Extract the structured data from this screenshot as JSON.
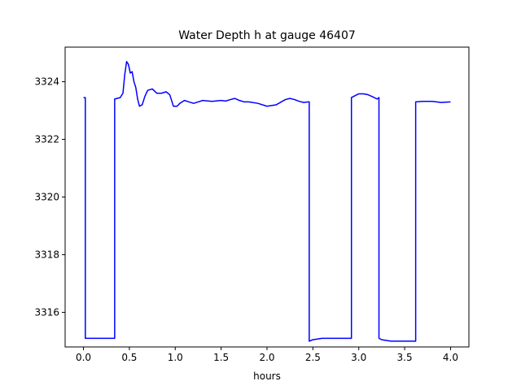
{
  "chart_data": {
    "type": "line",
    "title": "Water Depth h at gauge 46407",
    "xlabel": "hours",
    "ylabel": "",
    "xlim": [
      -0.2,
      4.2
    ],
    "ylim": [
      3314.8,
      3325.2
    ],
    "xticks": [
      0.0,
      0.5,
      1.0,
      1.5,
      2.0,
      2.5,
      3.0,
      3.5,
      4.0
    ],
    "xtick_labels": [
      "0.0",
      "0.5",
      "1.0",
      "1.5",
      "2.0",
      "2.5",
      "3.0",
      "3.5",
      "4.0"
    ],
    "yticks": [
      3316,
      3318,
      3320,
      3322,
      3324
    ],
    "ytick_labels": [
      "3316",
      "3318",
      "3320",
      "3322",
      "3324"
    ],
    "grid": false,
    "legend": false,
    "series": [
      {
        "color": "#0000ff",
        "x": [
          0.0,
          0.02,
          0.02,
          0.1,
          0.2,
          0.3,
          0.34,
          0.34,
          0.4,
          0.43,
          0.45,
          0.47,
          0.49,
          0.51,
          0.53,
          0.55,
          0.57,
          0.59,
          0.61,
          0.64,
          0.67,
          0.7,
          0.75,
          0.8,
          0.85,
          0.9,
          0.94,
          0.98,
          1.02,
          1.05,
          1.1,
          1.15,
          1.2,
          1.25,
          1.3,
          1.4,
          1.5,
          1.55,
          1.6,
          1.65,
          1.7,
          1.75,
          1.8,
          1.9,
          2.0,
          2.1,
          2.2,
          2.25,
          2.3,
          2.35,
          2.4,
          2.45,
          2.46,
          2.46,
          2.5,
          2.6,
          2.7,
          2.8,
          2.9,
          2.92,
          2.92,
          2.95,
          3.0,
          3.05,
          3.1,
          3.15,
          3.2,
          3.22,
          3.22,
          3.25,
          3.35,
          3.45,
          3.55,
          3.62,
          3.62,
          3.7,
          3.8,
          3.9,
          4.0
        ],
        "y": [
          3323.45,
          3323.45,
          3315.1,
          3315.1,
          3315.1,
          3315.1,
          3315.1,
          3323.4,
          3323.45,
          3323.6,
          3324.25,
          3324.7,
          3324.6,
          3324.3,
          3324.35,
          3324.0,
          3323.8,
          3323.4,
          3323.15,
          3323.2,
          3323.5,
          3323.7,
          3323.75,
          3323.6,
          3323.6,
          3323.65,
          3323.55,
          3323.15,
          3323.15,
          3323.25,
          3323.35,
          3323.3,
          3323.25,
          3323.3,
          3323.35,
          3323.32,
          3323.35,
          3323.33,
          3323.38,
          3323.42,
          3323.35,
          3323.3,
          3323.3,
          3323.25,
          3323.15,
          3323.2,
          3323.38,
          3323.42,
          3323.38,
          3323.32,
          3323.28,
          3323.3,
          3323.3,
          3315.0,
          3315.05,
          3315.1,
          3315.1,
          3315.1,
          3315.1,
          3315.1,
          3323.45,
          3323.5,
          3323.58,
          3323.58,
          3323.55,
          3323.48,
          3323.4,
          3323.45,
          3315.1,
          3315.05,
          3315.0,
          3315.0,
          3315.0,
          3315.0,
          3323.3,
          3323.32,
          3323.32,
          3323.28,
          3323.3
        ]
      }
    ]
  }
}
